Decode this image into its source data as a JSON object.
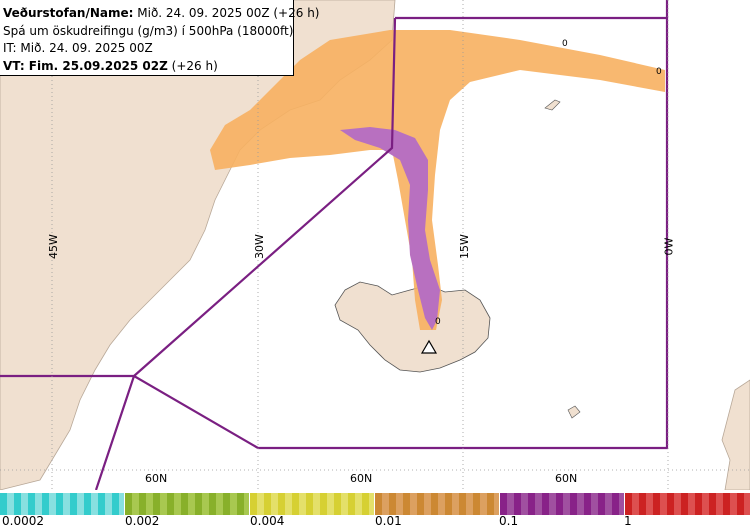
{
  "info": {
    "line1_label": "Veðurstofan/Name:",
    "line1_value": "Mið. 24. 09. 2025 00Z (+26 h)",
    "line2": "Spá um öskudreifingu (g/m3) í 500hPa (18000ft)",
    "line3": "IT: Mið. 24. 09. 2025 00Z",
    "line4_label": "VT: Fim. 25.09.2025 02Z",
    "line4_value": "(+26 h)"
  },
  "longitude_labels": [
    "45W",
    "30W",
    "15W",
    "0W"
  ],
  "latitude_labels": [
    "60N",
    "60N",
    "60N"
  ],
  "markers": [
    "0",
    "0",
    "0"
  ],
  "legend": {
    "ticks": [
      "0.0002",
      "0.002",
      "0.004",
      "0.01",
      "0.1",
      "1"
    ],
    "colors": [
      "#33cccc",
      "#88b02a",
      "#d6d033",
      "#cc8833",
      "#882288",
      "#cc2222"
    ]
  },
  "colors": {
    "land": "#f0e0d0",
    "sea": "#ffffff",
    "boundary": "#7a1f82",
    "ash_orange": "#f7b060",
    "ash_purple": "#b870c0"
  }
}
